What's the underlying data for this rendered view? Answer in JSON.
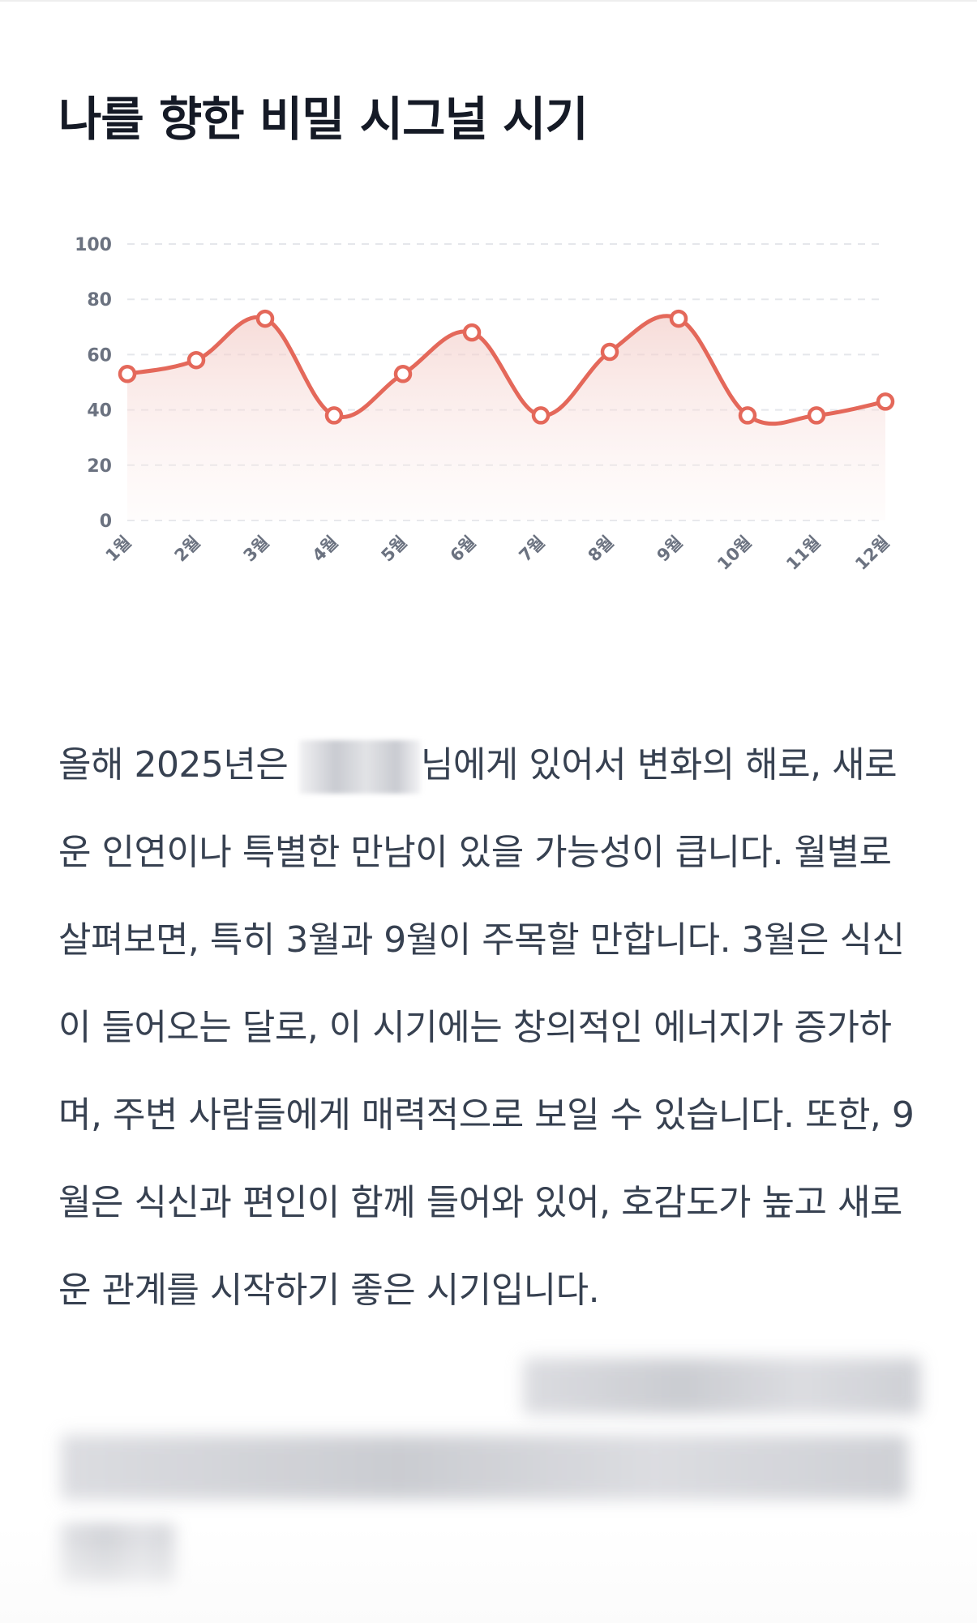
{
  "page": {
    "title": "나를 향한 비밀 시그널 시기"
  },
  "chart_data": {
    "type": "line",
    "title": "나를 향한 비밀 시그널 시기",
    "categories": [
      "1월",
      "2월",
      "3월",
      "4월",
      "5월",
      "6월",
      "7월",
      "8월",
      "9월",
      "10월",
      "11월",
      "12월"
    ],
    "values": [
      53,
      58,
      73,
      38,
      53,
      68,
      38,
      61,
      73,
      38,
      38,
      43
    ],
    "xlabel": "",
    "ylabel": "",
    "ylim": [
      0,
      100
    ],
    "yticks": [
      0,
      20,
      40,
      60,
      80,
      100
    ],
    "grid": "horizontal-dashed",
    "smooth": true,
    "area_fill": true,
    "legend": "none",
    "line_color": "#e4685a",
    "fill_color": "#f2c9c4"
  },
  "description": {
    "intro": "올해 2025년은",
    "redacted_name": "[blurred name]",
    "text": "님에게 있어서 변화의 해로, 새로운 인연이나 특별한 만남이 있을 가능성이 큽니다. 월별로 살펴보면, 특히 3월과 9월이 주목할 만합니다. 3월은 식신이 들어오는 달로, 이 시기에는 창의적인 에너지가 증가하며, 주변 사람들에게 매력적으로 보일 수 있습니다. 또한, 9월은 식신과 편인이 함께 들어와 있어, 호감도가 높고 새로운 관계를 시작하기 좋은 시기입니다.",
    "redacted_tail": "[blurred text]"
  }
}
